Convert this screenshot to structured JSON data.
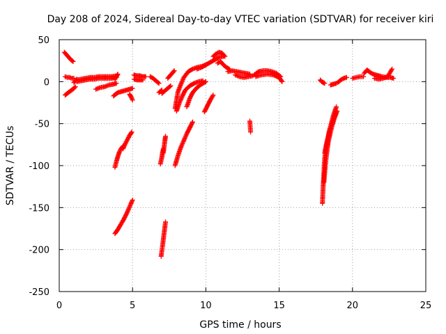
{
  "chart_data": {
    "type": "scatter",
    "title": "Day 208 of 2024, Sidereal Day-to-day VTEC variation (SDTVAR) for receiver kiri",
    "xlabel": "GPS time / hours",
    "ylabel": "SDTVAR / TECUs",
    "xlim": [
      0,
      25
    ],
    "ylim": [
      -250,
      50
    ],
    "xticks": [
      0,
      5,
      10,
      15,
      20,
      25
    ],
    "yticks": [
      -250,
      -200,
      -150,
      -100,
      -50,
      0,
      50
    ],
    "xtick_labels": [
      "0",
      "5",
      "10",
      "15",
      "20",
      "25"
    ],
    "ytick_labels": [
      "-250",
      "-200",
      "-150",
      "-100",
      "-50",
      "0",
      "50"
    ],
    "grid": true,
    "marker": "plus",
    "color": "#ff0000",
    "segments": [
      {
        "x": [
          0.35,
          0.5,
          0.65,
          0.8,
          0.95
        ],
        "y": [
          35,
          32,
          29,
          26,
          24
        ]
      },
      {
        "x": [
          0.4,
          0.55,
          0.7,
          0.85,
          1.0
        ],
        "y": [
          6,
          5,
          5,
          4,
          4
        ]
      },
      {
        "x": [
          0.4,
          0.55,
          0.7,
          0.85,
          1.0,
          1.1
        ],
        "y": [
          -16,
          -14,
          -12,
          -10,
          -8,
          -6
        ]
      },
      {
        "x": [
          1.0,
          1.1,
          1.2
        ],
        "y": [
          -1,
          1,
          3
        ]
      },
      {
        "x": [
          1.2,
          1.5,
          1.8,
          2.1,
          2.4,
          2.7,
          3.0,
          3.3,
          3.6,
          3.9
        ],
        "y": [
          2,
          3,
          4,
          5,
          5,
          6,
          6,
          6,
          6,
          7
        ]
      },
      {
        "x": [
          1.2,
          1.5,
          1.8,
          2.1,
          2.4,
          2.7,
          3.0,
          3.3,
          3.6,
          3.9
        ],
        "y": [
          0,
          1,
          2,
          3,
          3,
          4,
          4,
          4,
          4,
          5
        ]
      },
      {
        "x": [
          2.5,
          2.8,
          3.1,
          3.4,
          3.7,
          3.9
        ],
        "y": [
          -9,
          -7,
          -6,
          -4,
          -3,
          -2
        ]
      },
      {
        "x": [
          3.8,
          3.9,
          4.0
        ],
        "y": [
          3,
          6,
          9
        ]
      },
      {
        "x": [
          3.7,
          3.85,
          4.0,
          4.2,
          4.4,
          4.6,
          4.8,
          5.0
        ],
        "y": [
          -17,
          -15,
          -13,
          -12,
          -11,
          -10,
          -9,
          -8
        ]
      },
      {
        "x": [
          4.8,
          4.9,
          5.0
        ],
        "y": [
          -15,
          -18,
          -22
        ]
      },
      {
        "x": [
          3.8,
          3.9,
          4.0,
          4.1,
          4.2,
          4.35
        ],
        "y": [
          -102,
          -95,
          -89,
          -84,
          -80,
          -77
        ]
      },
      {
        "x": [
          4.35,
          4.5,
          4.65,
          4.8,
          4.95
        ],
        "y": [
          -80,
          -74,
          -69,
          -64,
          -60
        ]
      },
      {
        "x": [
          3.8,
          4.0,
          4.2,
          4.4,
          4.6,
          4.8,
          5.0
        ],
        "y": [
          -181,
          -176,
          -170,
          -164,
          -157,
          -149,
          -141
        ]
      },
      {
        "x": [
          5.1,
          5.3,
          5.5,
          5.7,
          5.9
        ],
        "y": [
          8,
          7,
          7,
          6,
          6
        ]
      },
      {
        "x": [
          5.1,
          5.3,
          5.5,
          5.7
        ],
        "y": [
          3,
          2,
          2,
          2
        ]
      },
      {
        "x": [
          6.2,
          6.4,
          6.6,
          6.8
        ],
        "y": [
          6,
          4,
          1,
          -2
        ]
      },
      {
        "x": [
          6.8,
          7.0
        ],
        "y": [
          -13,
          -10
        ]
      },
      {
        "x": [
          7.0,
          7.2,
          7.4,
          7.6
        ],
        "y": [
          -14,
          -11,
          -8,
          -5
        ]
      },
      {
        "x": [
          6.9,
          7.0,
          7.05,
          7.1
        ],
        "y": [
          -98,
          -90,
          -84,
          -80
        ]
      },
      {
        "x": [
          7.1,
          7.15,
          7.2,
          7.25
        ],
        "y": [
          -85,
          -78,
          -71,
          -65
        ]
      },
      {
        "x": [
          6.95,
          7.05,
          7.15,
          7.25
        ],
        "y": [
          -208,
          -195,
          -181,
          -167
        ]
      },
      {
        "x": [
          7.4,
          7.55,
          7.7,
          7.85
        ],
        "y": [
          4,
          7,
          10,
          13
        ]
      },
      {
        "x": [
          7.9,
          8.0,
          8.1,
          8.3,
          8.5,
          8.8,
          9.1,
          9.4,
          9.7,
          10.0
        ],
        "y": [
          -32,
          -22,
          -12,
          -3,
          5,
          12,
          15,
          17,
          18,
          20
        ]
      },
      {
        "x": [
          8.0,
          8.2,
          8.4,
          8.6,
          8.9,
          9.2,
          9.5,
          9.8
        ],
        "y": [
          -35,
          -25,
          -17,
          -10,
          -5,
          -2,
          0,
          1
        ]
      },
      {
        "x": [
          8.7,
          8.9,
          9.1,
          9.4,
          9.7,
          10.0
        ],
        "y": [
          -30,
          -20,
          -13,
          -7,
          -3,
          0
        ]
      },
      {
        "x": [
          7.9,
          8.1,
          8.3,
          8.5,
          8.7,
          8.9,
          9.1
        ],
        "y": [
          -100,
          -88,
          -78,
          -70,
          -62,
          -55,
          -48
        ]
      },
      {
        "x": [
          9.9,
          10.1,
          10.3,
          10.5
        ],
        "y": [
          -36,
          -29,
          -22,
          -16
        ]
      },
      {
        "x": [
          9.4,
          9.7,
          10.0,
          10.3,
          10.6,
          10.9,
          11.2
        ],
        "y": [
          15,
          17,
          20,
          23,
          26,
          29,
          30
        ]
      },
      {
        "x": [
          10.5,
          10.7,
          10.9,
          11.1,
          11.3
        ],
        "y": [
          30,
          33,
          35,
          34,
          30
        ]
      },
      {
        "x": [
          10.8,
          11.0,
          11.2,
          11.4,
          11.6
        ],
        "y": [
          22,
          24,
          20,
          17,
          15
        ]
      },
      {
        "x": [
          11.5,
          11.8,
          12.1,
          12.4,
          12.7,
          13.0
        ],
        "y": [
          12,
          13,
          12,
          11,
          10,
          9
        ]
      },
      {
        "x": [
          12.0,
          12.3,
          12.6,
          12.9,
          13.2
        ],
        "y": [
          8,
          6,
          5,
          6,
          7
        ]
      },
      {
        "x": [
          13.0,
          13.05
        ],
        "y": [
          -47,
          -60
        ]
      },
      {
        "x": [
          13.3,
          13.6,
          13.9,
          14.2,
          14.5,
          14.8,
          15.1
        ],
        "y": [
          8,
          12,
          13,
          13,
          12,
          10,
          6
        ]
      },
      {
        "x": [
          13.4,
          13.8,
          14.2,
          14.6,
          15.0,
          15.2
        ],
        "y": [
          6,
          8,
          9,
          8,
          5,
          0
        ]
      },
      {
        "x": [
          17.8,
          17.9,
          18.0,
          18.1
        ],
        "y": [
          2,
          0,
          -1,
          -2
        ]
      },
      {
        "x": [
          17.95,
          18.0,
          18.05,
          18.1,
          18.2,
          18.3,
          18.4,
          18.55,
          18.7,
          18.9
        ],
        "y": [
          -145,
          -125,
          -108,
          -92,
          -80,
          -70,
          -60,
          -50,
          -40,
          -30
        ]
      },
      {
        "x": [
          18.05,
          18.15,
          18.25,
          18.35,
          18.5,
          18.65,
          18.8,
          18.95
        ],
        "y": [
          -120,
          -100,
          -84,
          -72,
          -60,
          -50,
          -42,
          -35
        ]
      },
      {
        "x": [
          18.1,
          18.25,
          18.4,
          18.55,
          18.7,
          18.85
        ],
        "y": [
          -85,
          -72,
          -62,
          -53,
          -45,
          -38
        ]
      },
      {
        "x": [
          18.5,
          18.7,
          18.9
        ],
        "y": [
          -4,
          -3,
          -2
        ]
      },
      {
        "x": [
          19.0,
          19.2,
          19.4,
          19.6
        ],
        "y": [
          -1,
          2,
          4,
          5
        ]
      },
      {
        "x": [
          20.0,
          20.25,
          20.5,
          20.75
        ],
        "y": [
          4,
          5,
          6,
          6
        ]
      },
      {
        "x": [
          20.8,
          21.0,
          21.2,
          21.4,
          21.6,
          21.8,
          22.0,
          22.3,
          22.6,
          22.8
        ],
        "y": [
          10,
          14,
          11,
          9,
          8,
          7,
          6,
          5,
          5,
          4
        ]
      },
      {
        "x": [
          21.5,
          21.8,
          22.1,
          22.4,
          22.7
        ],
        "y": [
          4,
          3,
          4,
          6,
          15
        ]
      }
    ]
  }
}
